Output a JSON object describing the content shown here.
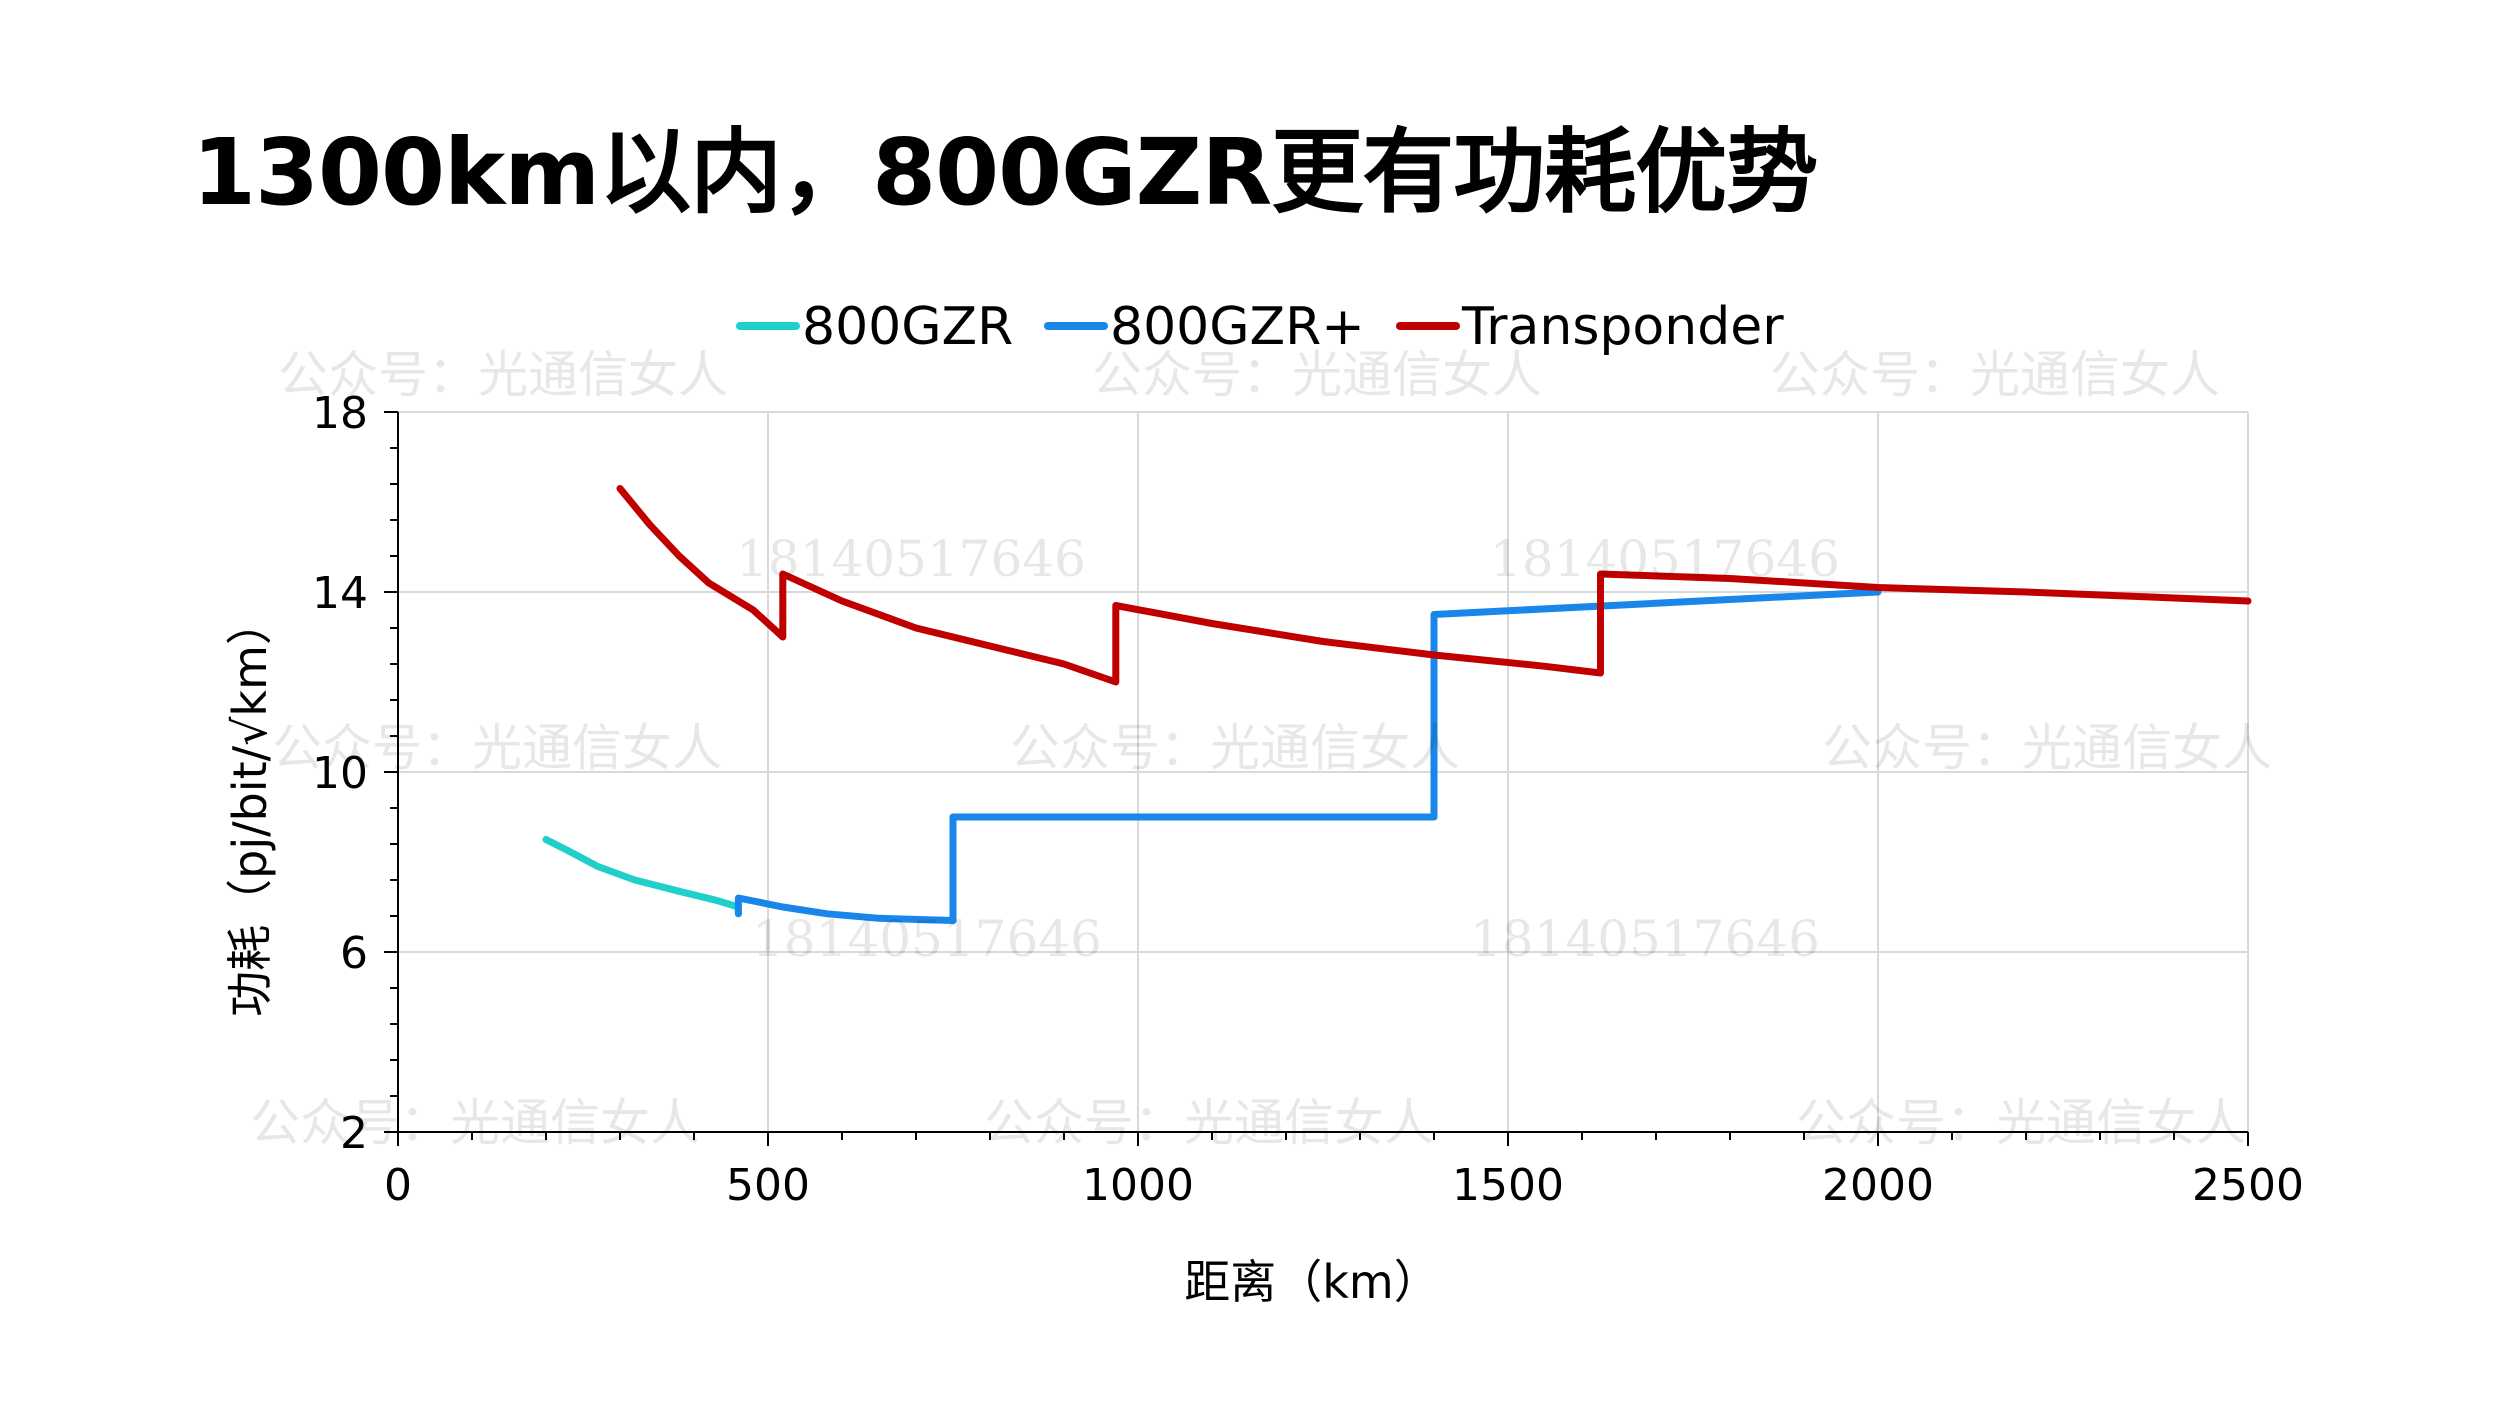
{
  "title": "1300km以内，800GZR更有功耗优势",
  "chart_data": {
    "type": "line",
    "xlabel": "距离（km）",
    "ylabel": "功耗（pj/bit/√km）",
    "xlim": [
      0,
      2500
    ],
    "ylim": [
      2,
      18
    ],
    "x_ticks": [
      0,
      500,
      1000,
      1500,
      2000,
      2500
    ],
    "y_ticks": [
      2,
      6,
      10,
      14,
      18
    ],
    "x_ticks_labels": [
      "0",
      "500",
      "1000",
      "1500",
      "2000",
      "2500"
    ],
    "y_ticks_labels": [
      "2",
      "6",
      "10",
      "14",
      "18"
    ],
    "grid": true,
    "legend_position": "top",
    "series": [
      {
        "name": "800GZR",
        "color": "#1fcfc9",
        "points": [
          [
            200,
            8.5
          ],
          [
            230,
            8.25
          ],
          [
            270,
            7.9
          ],
          [
            320,
            7.6
          ],
          [
            380,
            7.35
          ],
          [
            430,
            7.15
          ],
          [
            460,
            7.0
          ],
          [
            460,
            6.85
          ]
        ]
      },
      {
        "name": "800GZR+",
        "color": "#1a86ea",
        "points": [
          [
            460,
            6.85
          ],
          [
            460,
            7.2
          ],
          [
            520,
            7.0
          ],
          [
            580,
            6.85
          ],
          [
            650,
            6.75
          ],
          [
            750,
            6.7
          ],
          [
            750,
            9.0
          ],
          [
            1400,
            9.0
          ],
          [
            1400,
            13.5
          ],
          [
            2000,
            14.0
          ]
        ]
      },
      {
        "name": "Transponder",
        "color": "#c00000",
        "points": [
          [
            300,
            16.3
          ],
          [
            340,
            15.5
          ],
          [
            380,
            14.8
          ],
          [
            420,
            14.2
          ],
          [
            480,
            13.6
          ],
          [
            520,
            13.0
          ],
          [
            520,
            14.4
          ],
          [
            600,
            13.8
          ],
          [
            700,
            13.2
          ],
          [
            800,
            12.8
          ],
          [
            900,
            12.4
          ],
          [
            970,
            12.0
          ],
          [
            970,
            13.7
          ],
          [
            1100,
            13.3
          ],
          [
            1250,
            12.9
          ],
          [
            1400,
            12.6
          ],
          [
            1550,
            12.35
          ],
          [
            1625,
            12.2
          ],
          [
            1625,
            14.4
          ],
          [
            1800,
            14.3
          ],
          [
            2000,
            14.1
          ],
          [
            2200,
            14.0
          ],
          [
            2500,
            13.8
          ]
        ]
      }
    ]
  },
  "watermarks": {
    "account": "公众号：光通信女人",
    "phone": "18140517646"
  }
}
